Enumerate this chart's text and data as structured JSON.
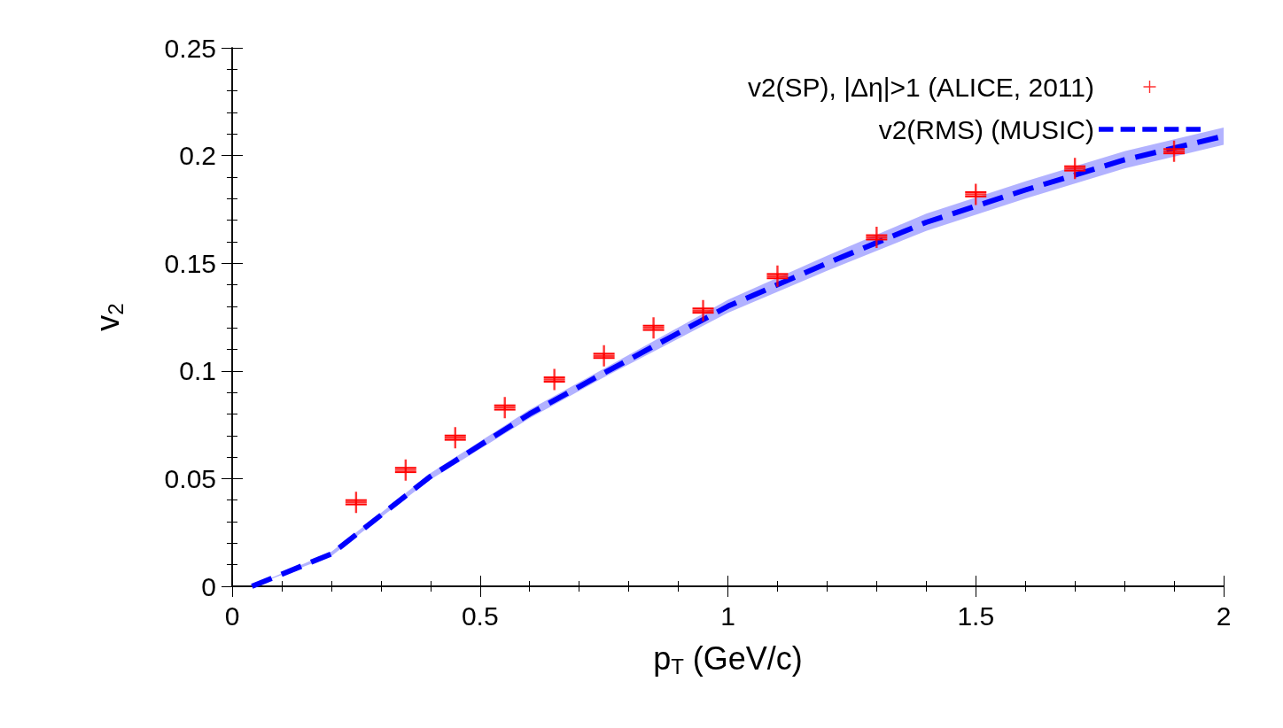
{
  "chart_data": {
    "type": "scatter",
    "xlabel": "p$_{T}$ (GeV/c)",
    "ylabel": "v$_{2}$",
    "xlim": [
      0,
      2
    ],
    "xticks": [
      0,
      0.5,
      1,
      1.5,
      2
    ],
    "ylim": [
      0,
      0.25
    ],
    "yticks": [
      0,
      0.05,
      0.1,
      0.15,
      0.2,
      0.25
    ],
    "grid": false,
    "legend": "top right",
    "series": [
      {
        "name": "v2(SP), |Δη|>1 (ALICE, 2011)",
        "marker": "cross",
        "color": "#ff0000",
        "x": [
          0.25,
          0.35,
          0.45,
          0.55,
          0.65,
          0.75,
          0.85,
          0.95,
          1.1,
          1.3,
          1.5,
          1.7,
          1.9
        ],
        "values": [
          0.039,
          0.054,
          0.069,
          0.083,
          0.096,
          0.107,
          0.12,
          0.128,
          0.144,
          0.162,
          0.182,
          0.194,
          0.202
        ],
        "errors": [
          0.001,
          0.001,
          0.001,
          0.001,
          0.001,
          0.001,
          0.001,
          0.001,
          0.001,
          0.001,
          0.001,
          0.001,
          0.001
        ]
      },
      {
        "name": "v2(RMS) (MUSIC)",
        "type": "line",
        "marker": "none",
        "line_style": "dashed",
        "color": "#0000ff",
        "x": [
          0.04,
          0.2,
          0.3,
          0.4,
          0.6,
          0.75,
          1,
          1.2,
          1.4,
          1.6,
          1.8,
          2
        ],
        "values": [
          0,
          0.015,
          0.033,
          0.051,
          0.08,
          0.099,
          0.13,
          0.15,
          0.169,
          0.184,
          0.198,
          0.209
        ],
        "lower": [
          0,
          0.014,
          0.032,
          0.0495,
          0.078,
          0.097,
          0.127,
          0.1465,
          0.165,
          0.18,
          0.194,
          0.205
        ],
        "upper": [
          0,
          0.016,
          0.034,
          0.0525,
          0.082,
          0.101,
          0.133,
          0.1535,
          0.173,
          0.188,
          0.202,
          0.213
        ]
      }
    ]
  }
}
